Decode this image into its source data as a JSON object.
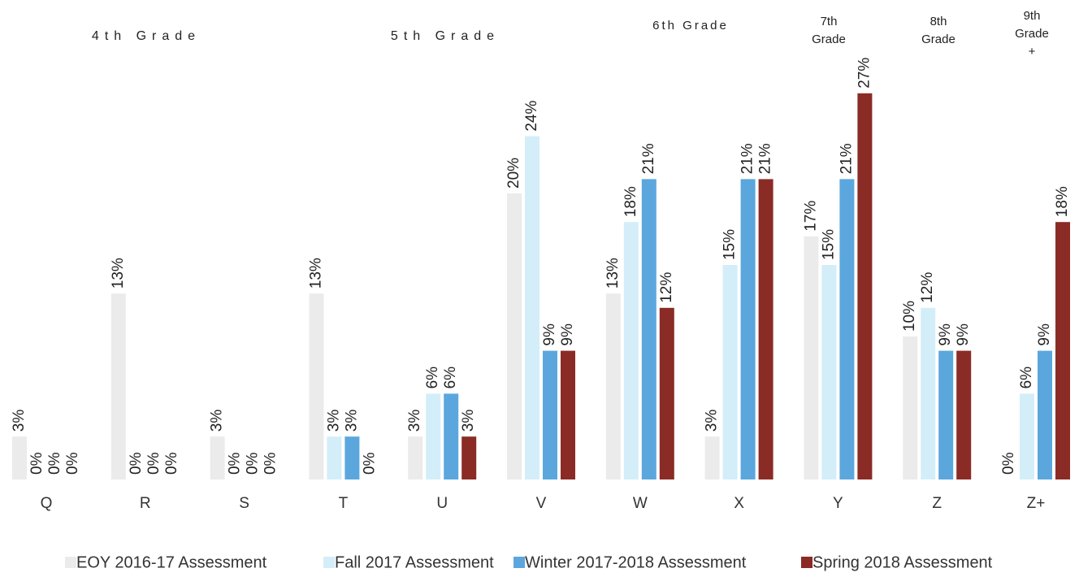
{
  "chart_data": {
    "type": "bar",
    "group_labels": [
      "4th Grade",
      "5th Grade",
      "6th Grade",
      "7th Grade",
      "8th Grade",
      "9th Grade +"
    ],
    "categories": [
      "Q",
      "R",
      "S",
      "T",
      "U",
      "V",
      "W",
      "X",
      "Y",
      "Z",
      "Z+"
    ],
    "series": [
      {
        "name": "EOY 2016-17 Assessment",
        "color": "#ebebeb",
        "values": [
          3,
          13,
          3,
          13,
          3,
          20,
          13,
          3,
          17,
          10,
          0
        ],
        "value_labels": [
          "3%",
          "13%",
          "3%",
          "13%",
          "3%",
          "20%",
          "13%",
          "3%",
          "17%",
          "10%",
          "0%"
        ]
      },
      {
        "name": "Fall 2017 Assessment",
        "color": "#d3eef9",
        "values": [
          0,
          0,
          0,
          3,
          6,
          24,
          18,
          15,
          15,
          12,
          6
        ],
        "value_labels": [
          "0%",
          "0%",
          "0%",
          "3%",
          "6%",
          "24%",
          "18%",
          "15%",
          "15%",
          "12%",
          "6%"
        ]
      },
      {
        "name": "Winter 2017-2018 Assessment",
        "color": "#5ba7dd",
        "values": [
          0,
          0,
          0,
          3,
          6,
          9,
          21,
          21,
          21,
          9,
          9
        ],
        "value_labels": [
          "0%",
          "0%",
          "0%",
          "3%",
          "6%",
          "9%",
          "21%",
          "21%",
          "21%",
          "9%",
          "9%"
        ]
      },
      {
        "name": "Spring 2018 Assessment",
        "color": "#8b2b25",
        "values": [
          0,
          0,
          0,
          0,
          3,
          9,
          12,
          21,
          27,
          9,
          18
        ],
        "value_labels": [
          "0%",
          "0%",
          "0%",
          "0%",
          "3%",
          "9%",
          "12%",
          "21%",
          "27%",
          "9%",
          "18%"
        ]
      }
    ]
  }
}
